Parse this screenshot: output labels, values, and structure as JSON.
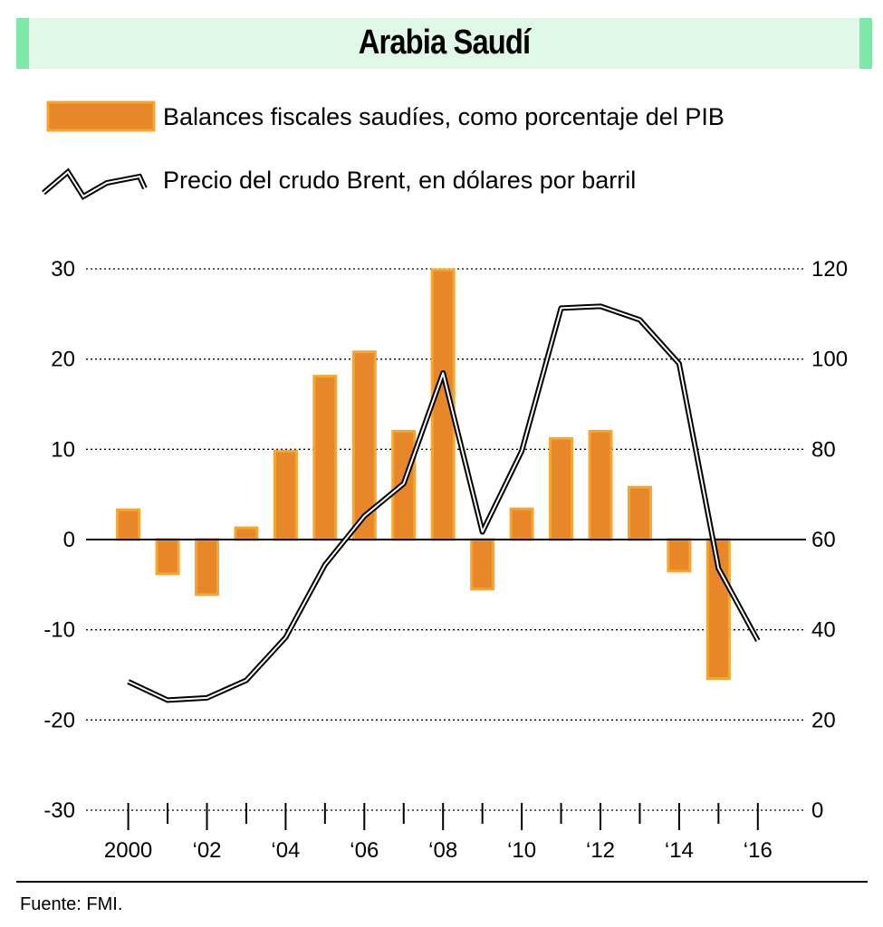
{
  "header": {
    "title": "Arabia Saudí"
  },
  "legend": {
    "bars_label": "Balances fiscales saudíes, como porcentaje del PIB",
    "line_label": "Precio del crudo Brent, en dólares por barril"
  },
  "source": "Fuente: FMI.",
  "colors": {
    "bar_fill": "#e8872a",
    "bar_stroke": "#f5a630",
    "line": "#000000",
    "title_band": "#e0f8e8",
    "title_edge": "#7ee8a8"
  },
  "chart_data": {
    "type": "bar",
    "x": [
      2000,
      2001,
      2002,
      2003,
      2004,
      2005,
      2006,
      2007,
      2008,
      2009,
      2010,
      2011,
      2012,
      2013,
      2014,
      2015,
      2016
    ],
    "x_tick_labels": [
      "2000",
      "‘02",
      "‘04",
      "‘06",
      "‘08",
      "‘10",
      "‘12",
      "‘14",
      "‘16"
    ],
    "x_tick_values": [
      2000,
      2002,
      2004,
      2006,
      2008,
      2010,
      2012,
      2014,
      2016
    ],
    "left_axis": {
      "ylim": [
        -30,
        30
      ],
      "ticks": [
        30,
        20,
        10,
        0,
        -10,
        -20,
        -30
      ]
    },
    "right_axis": {
      "ylim": [
        0,
        120
      ],
      "ticks": [
        120,
        100,
        80,
        60,
        40,
        20,
        0
      ]
    },
    "series": [
      {
        "name": "Balances fiscales saudíes, como porcentaje del PIB",
        "type": "bar",
        "axis": "left",
        "values": [
          3.3,
          -3.8,
          -6.1,
          1.3,
          9.8,
          18.1,
          20.8,
          12.0,
          29.9,
          -5.5,
          3.4,
          11.2,
          12.0,
          5.8,
          -3.5,
          -15.4,
          null
        ]
      },
      {
        "name": "Precio del crudo Brent, en dólares por barril",
        "type": "line",
        "axis": "right",
        "values": [
          28.5,
          24.4,
          24.9,
          28.8,
          38.3,
          54.4,
          65.2,
          72.4,
          96.9,
          61.7,
          79.6,
          111.3,
          111.7,
          108.7,
          99.0,
          53.6,
          37.6
        ]
      }
    ],
    "grid": "dotted horizontal"
  }
}
